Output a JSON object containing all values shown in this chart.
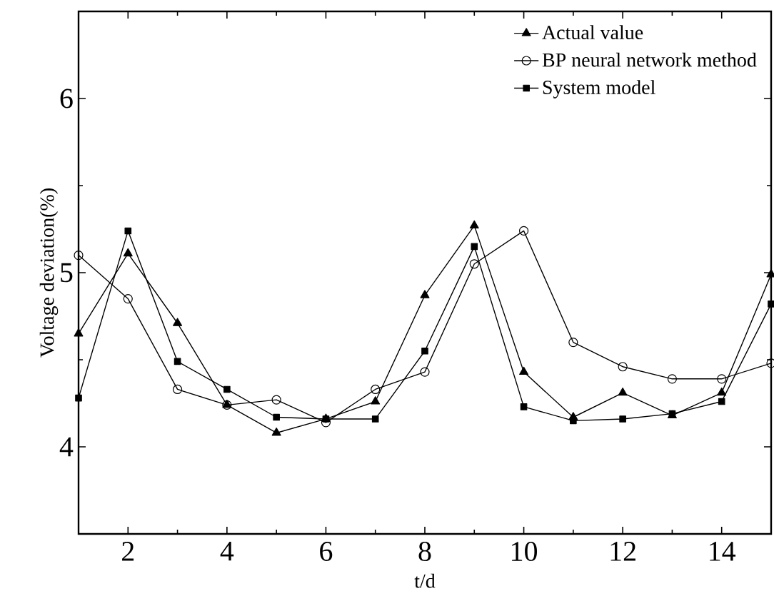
{
  "chart_data": {
    "type": "line",
    "xlabel": "t/d",
    "ylabel": "Voltage deviation(%)",
    "x": [
      1,
      2,
      3,
      4,
      5,
      6,
      7,
      8,
      9,
      10,
      11,
      12,
      13,
      14,
      15
    ],
    "series": [
      {
        "name": "Actual value",
        "color": "#000000",
        "marker": "triangle",
        "values": [
          4.65,
          5.11,
          4.71,
          4.24,
          4.08,
          4.16,
          4.26,
          4.87,
          5.27,
          4.43,
          4.17,
          4.31,
          4.18,
          4.31,
          4.99
        ]
      },
      {
        "name": "BP neural network method",
        "color": "#000000",
        "marker": "circle",
        "values": [
          5.1,
          4.85,
          4.33,
          4.24,
          4.27,
          4.14,
          4.33,
          4.43,
          5.05,
          5.24,
          4.6,
          4.46,
          4.39,
          4.39,
          4.48
        ]
      },
      {
        "name": "System model",
        "color": "#000000",
        "marker": "square",
        "values": [
          4.28,
          5.24,
          4.49,
          4.33,
          4.17,
          4.16,
          4.16,
          4.55,
          5.15,
          4.23,
          4.15,
          4.16,
          4.19,
          4.26,
          4.82
        ]
      }
    ],
    "xlim": [
      1,
      15
    ],
    "xticks": [
      2,
      4,
      6,
      8,
      10,
      12,
      14
    ],
    "ylim": [
      3.5,
      6.5
    ],
    "yticks": [
      4,
      5,
      6
    ],
    "legend": "top right",
    "grid": false,
    "line_style": "solid"
  }
}
